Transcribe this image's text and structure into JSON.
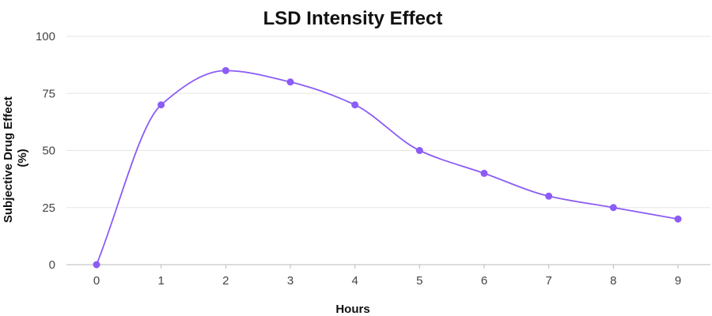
{
  "chart_data": {
    "type": "line",
    "title": "LSD Intensity Effect",
    "xlabel": "Hours",
    "ylabel_lines": [
      "Subjective Drug Effect",
      "(%)"
    ],
    "x": [
      0,
      1,
      2,
      3,
      4,
      5,
      6,
      7,
      8,
      9
    ],
    "values": [
      0,
      70,
      85,
      80,
      70,
      50,
      40,
      30,
      25,
      20
    ],
    "xlim": [
      0,
      9
    ],
    "ylim": [
      0,
      100
    ],
    "yticks": [
      0,
      25,
      50,
      75,
      100
    ],
    "xticks": [
      0,
      1,
      2,
      3,
      4,
      5,
      6,
      7,
      8,
      9
    ],
    "grid": true,
    "legend": "none",
    "colors": {
      "line": "#8b5cf6",
      "grid": "#e5e5e5",
      "axis": "#bbbbbb"
    }
  }
}
